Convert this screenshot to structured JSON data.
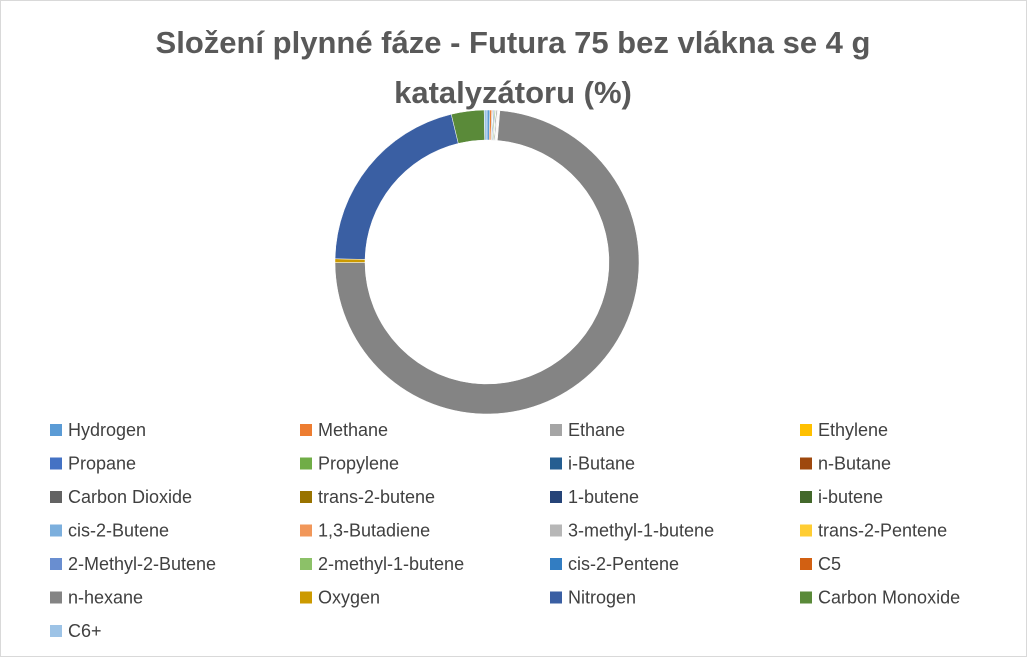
{
  "chart_data": {
    "type": "doughnut",
    "title": "Složení plynné fáze - Futura 75 bez vlákna se 4 g katalyzátoru (%)",
    "categories": [
      "Hydrogen",
      "Methane",
      "Ethane",
      "Ethylene",
      "Propane",
      "Propylene",
      "i-Butane",
      "n-Butane",
      "Carbon Dioxide",
      "trans-2-butene",
      "1-butene",
      "i-butene",
      "cis-2-Butene",
      "1,3-Butadiene",
      "3-methyl-1-butene",
      "trans-2-Pentene",
      "2-Methyl-2-Butene",
      "2-methyl-1-butene",
      "cis-2-Pentene",
      "C5",
      "n-hexane",
      "Oxygen",
      "Nitrogen",
      "Carbon Monoxide",
      "C6+"
    ],
    "values": [
      0.3,
      0.2,
      0.1,
      0.05,
      0.1,
      0.1,
      0.05,
      0.05,
      0.1,
      0.05,
      0.02,
      0.05,
      0.02,
      0.02,
      0.02,
      0.02,
      0.02,
      0.02,
      0.02,
      0.05,
      74,
      0.4,
      21,
      3.5,
      0.3
    ],
    "colors": [
      "#5B9BD5",
      "#ED7D31",
      "#A5A5A5",
      "#FFC000",
      "#4472C4",
      "#70AD47",
      "#255E91",
      "#9E480E",
      "#636363",
      "#997300",
      "#264478",
      "#43682B",
      "#7CAFDD",
      "#F1975A",
      "#B7B7B7",
      "#FFCD33",
      "#698ED0",
      "#8CC168",
      "#327DC2",
      "#D26012",
      "#848484",
      "#CC9A00",
      "#3A5FA3",
      "#5A8A39",
      "#9DC3E6"
    ],
    "legend": "bottom"
  }
}
